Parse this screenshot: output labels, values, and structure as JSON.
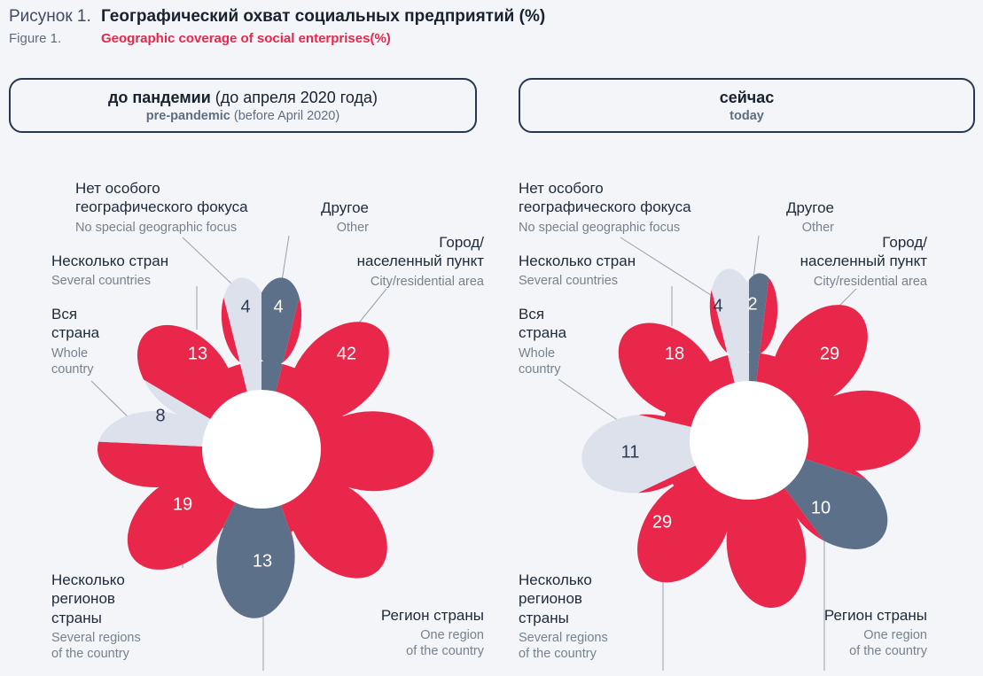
{
  "header": {
    "label_ru": "Рисунок 1.",
    "title_ru": "Географический охват социальных предприятий (%)",
    "label_en": "Figure 1.",
    "title_en": "Geographic coverage of social enterprises(%)"
  },
  "panels": [
    {
      "ru_bold": "до пандемии",
      "ru_rest": " (до апреля 2020 года)",
      "en_bold": "pre-pandemic",
      "en_rest": " (before April 2020)"
    },
    {
      "ru_bold": "сейчас",
      "ru_rest": "",
      "en_bold": "today",
      "en_rest": ""
    }
  ],
  "callouts": {
    "no_focus": {
      "ru": "Нет особого\nгеографического фокуса",
      "en": "No special geographic focus"
    },
    "other": {
      "ru": "Другое",
      "en": "Other"
    },
    "city": {
      "ru": "Город/\nнаселенный пункт",
      "en": "City/residential area"
    },
    "several_countries": {
      "ru": "Несколько стран",
      "en": "Several countries"
    },
    "whole_country": {
      "ru": "Вся\nстрана",
      "en": "Whole\ncountry"
    },
    "several_regions": {
      "ru": "Несколько\nрегионов\nстраны",
      "en": "Several regions\nof the country"
    },
    "one_region": {
      "ru": "Регион страны",
      "en": "One region\nof the country"
    }
  },
  "colors": {
    "red": "#e8274b",
    "dark": "#5d7089",
    "light": "#dce1ec",
    "page_bg": "#f3f5f8",
    "accent": "#e8274b"
  },
  "chart_data": [
    {
      "type": "pie",
      "style": "flower-petal",
      "title_ru": "до пандемии (до апреля 2020 года)",
      "title_en": "pre-pandemic (before April 2020)",
      "unit": "%",
      "segments": [
        {
          "label_ru": "Другое",
          "label_en": "Other",
          "value": 4,
          "color_key": "dark"
        },
        {
          "label_ru": "Город/населенный пункт",
          "label_en": "City/residential area",
          "value": 42,
          "color_key": "red"
        },
        {
          "label_ru": "Регион страны",
          "label_en": "One region of the country",
          "value": 13,
          "color_key": "dark"
        },
        {
          "label_ru": "Несколько регионов страны",
          "label_en": "Several regions of the country",
          "value": 19,
          "color_key": "red"
        },
        {
          "label_ru": "Вся страна",
          "label_en": "Whole country",
          "value": 8,
          "color_key": "light"
        },
        {
          "label_ru": "Несколько стран",
          "label_en": "Several countries",
          "value": 13,
          "color_key": "red"
        },
        {
          "label_ru": "Нет особого географического фокуса",
          "label_en": "No special geographic focus",
          "value": 4,
          "color_key": "light"
        }
      ]
    },
    {
      "type": "pie",
      "style": "flower-petal",
      "title_ru": "сейчас",
      "title_en": "today",
      "unit": "%",
      "segments": [
        {
          "label_ru": "Другое",
          "label_en": "Other",
          "value": 2,
          "color_key": "dark"
        },
        {
          "label_ru": "Город/населенный пункт",
          "label_en": "City/residential area",
          "value": 29,
          "color_key": "red"
        },
        {
          "label_ru": "Регион страны",
          "label_en": "One region of the country",
          "value": 10,
          "color_key": "dark"
        },
        {
          "label_ru": "Несколько регионов страны",
          "label_en": "Several regions of the country",
          "value": 29,
          "color_key": "red"
        },
        {
          "label_ru": "Вся страна",
          "label_en": "Whole country",
          "value": 11,
          "color_key": "light"
        },
        {
          "label_ru": "Несколько стран",
          "label_en": "Several countries",
          "value": 18,
          "color_key": "red"
        },
        {
          "label_ru": "Нет особого географического фокуса",
          "label_en": "No special geographic focus",
          "value": 4,
          "color_key": "light"
        }
      ]
    }
  ]
}
